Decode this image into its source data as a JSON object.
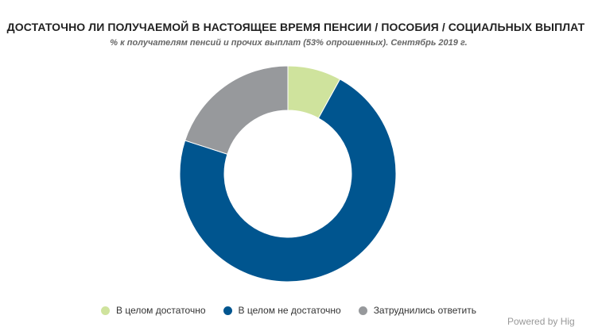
{
  "title": "ДОСТАТОЧНО ЛИ ПОЛУЧАЕМОЙ В НАСТОЯЩЕЕ ВРЕМЯ ПЕНСИИ / ПОСОБИЯ / СОЦИАЛЬНЫХ ВЫПЛАТ",
  "subtitle": "% к получателям пенсий и прочих выплат (53% опрошенных). Сентябрь 2019 г.",
  "credit": "Powered by Hig",
  "chart_data": {
    "type": "pie",
    "donut": true,
    "categories": [
      "В целом достаточно",
      "В целом не достаточно",
      "Затруднились ответить"
    ],
    "values": [
      8,
      72,
      20
    ],
    "colors": [
      "#cfe39d",
      "#00558f",
      "#97999c"
    ],
    "legend_position": "bottom"
  }
}
